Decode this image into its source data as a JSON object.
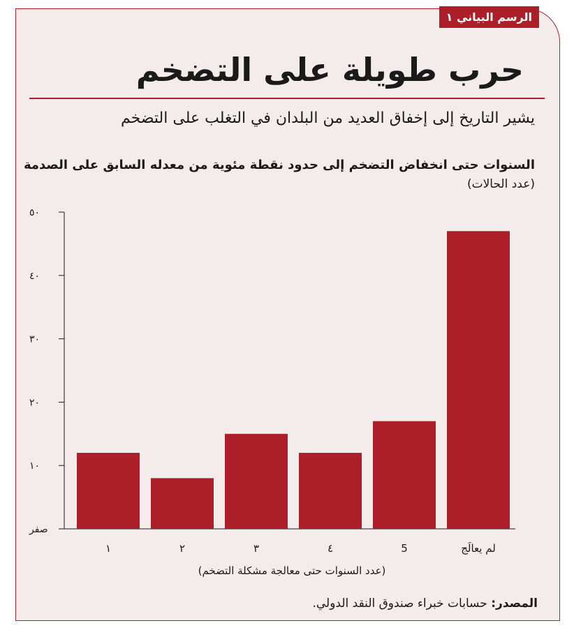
{
  "figure_tag": "الرسم البياني ١",
  "title": "حرب طويلة على التضخم",
  "subtitle": "يشير التاريخ إلى إخفاق العديد من البلدان في التغلب على التضخم",
  "source": {
    "label": "المصدر:",
    "text": "حسابات خبراء صندوق النقد الدولي."
  },
  "colors": {
    "accent": "#ad1f28",
    "panel": "#f4ecea",
    "text": "#1a1a1a"
  },
  "chart_data": {
    "type": "bar",
    "title": "السنوات حتى انخفاض التضخم إلى حدود نقطة مئوية من معدله السابق على الصدمة",
    "ylabel": "(عدد الحالات)",
    "xlabel": "(عدد السنوات حتى معالجة مشكلة التضخم)",
    "categories": [
      "١",
      "٢",
      "٣",
      "٤",
      "5",
      "لم يعالَج"
    ],
    "values": [
      12,
      8,
      15,
      12,
      17,
      47
    ],
    "ylim": [
      0,
      50
    ],
    "yticks": [
      0,
      10,
      20,
      30,
      40,
      50
    ],
    "ytick_labels": [
      "صفر",
      "١٠",
      "٢٠",
      "٣٠",
      "٤٠",
      "٥٠"
    ],
    "color": "#ad1f28",
    "grid": false
  }
}
